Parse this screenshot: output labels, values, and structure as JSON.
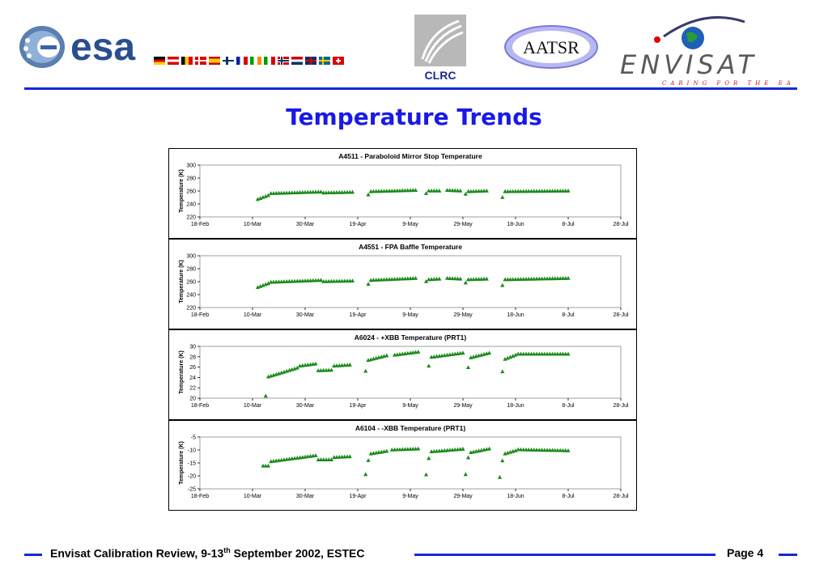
{
  "header": {
    "esa_text": "esa",
    "clrc_text": "CLRC",
    "aatsr_text": "AATSR",
    "envisat_text": "ENVISAT",
    "envisat_tagline": "CARING FOR THE EARTH"
  },
  "page_title": "Temperature Trends",
  "footer": {
    "text_pre": "Envisat Calibration Review, 9-13",
    "text_sup": "th",
    "text_post": " September 2002,  ESTEC",
    "page": "Page 4"
  },
  "colors": {
    "accent": "#1428d6",
    "title": "#1a1ae6",
    "marker": "#1a8a1a"
  },
  "chart_data": [
    {
      "type": "scatter",
      "title": "A4511 - Paraboloid Mirror Stop Temperature",
      "ylabel": "Temperature (K)",
      "xlabel": "",
      "ylim": [
        220,
        300
      ],
      "yticks": [
        220,
        240,
        260,
        280,
        300
      ],
      "xlim": [
        "2002-02-18",
        "2002-07-28"
      ],
      "xtick_labels": [
        "18-Feb",
        "10-Mar",
        "30-Mar",
        "19-Apr",
        "9-May",
        "29-May",
        "18-Jun",
        "8-Jul",
        "28-Jul"
      ],
      "segments": [
        {
          "start": "2002-03-12",
          "end": "2002-03-16",
          "from": 247,
          "to": 253
        },
        {
          "start": "2002-03-17",
          "end": "2002-04-05",
          "from": 256,
          "to": 258.5
        },
        {
          "start": "2002-04-06",
          "end": "2002-04-17",
          "from": 257,
          "to": 258
        },
        {
          "start": "2002-04-23",
          "end": "2002-04-23",
          "from": 254,
          "to": 254
        },
        {
          "start": "2002-04-24",
          "end": "2002-05-11",
          "from": 259,
          "to": 261
        },
        {
          "start": "2002-05-15",
          "end": "2002-05-15",
          "from": 256,
          "to": 256
        },
        {
          "start": "2002-05-16",
          "end": "2002-05-20",
          "from": 260,
          "to": 260
        },
        {
          "start": "2002-05-23",
          "end": "2002-05-28",
          "from": 261,
          "to": 260
        },
        {
          "start": "2002-05-30",
          "end": "2002-05-30",
          "from": 255,
          "to": 255
        },
        {
          "start": "2002-05-31",
          "end": "2002-06-07",
          "from": 259,
          "to": 260
        },
        {
          "start": "2002-06-13",
          "end": "2002-06-13",
          "from": 250,
          "to": 250
        },
        {
          "start": "2002-06-14",
          "end": "2002-07-08",
          "from": 259,
          "to": 260
        }
      ]
    },
    {
      "type": "scatter",
      "title": "A4551 - FPA Baffle Temperature",
      "ylabel": "Temperature (K)",
      "xlabel": "",
      "ylim": [
        220,
        300
      ],
      "yticks": [
        220,
        240,
        260,
        280,
        300
      ],
      "xlim": [
        "2002-02-18",
        "2002-07-28"
      ],
      "xtick_labels": [
        "18-Feb",
        "10-Mar",
        "30-Mar",
        "19-Apr",
        "9-May",
        "29-May",
        "18-Jun",
        "8-Jul",
        "28-Jul"
      ],
      "segments": [
        {
          "start": "2002-03-12",
          "end": "2002-03-16",
          "from": 251,
          "to": 257
        },
        {
          "start": "2002-03-17",
          "end": "2002-04-05",
          "from": 259,
          "to": 262
        },
        {
          "start": "2002-04-06",
          "end": "2002-04-17",
          "from": 260,
          "to": 261
        },
        {
          "start": "2002-04-23",
          "end": "2002-04-23",
          "from": 256,
          "to": 256
        },
        {
          "start": "2002-04-24",
          "end": "2002-05-11",
          "from": 262,
          "to": 265
        },
        {
          "start": "2002-05-15",
          "end": "2002-05-15",
          "from": 260,
          "to": 260
        },
        {
          "start": "2002-05-16",
          "end": "2002-05-20",
          "from": 263,
          "to": 264
        },
        {
          "start": "2002-05-23",
          "end": "2002-05-28",
          "from": 265,
          "to": 264
        },
        {
          "start": "2002-05-30",
          "end": "2002-05-30",
          "from": 258,
          "to": 258
        },
        {
          "start": "2002-05-31",
          "end": "2002-06-07",
          "from": 263,
          "to": 264
        },
        {
          "start": "2002-06-13",
          "end": "2002-06-13",
          "from": 254,
          "to": 254
        },
        {
          "start": "2002-06-14",
          "end": "2002-07-08",
          "from": 263,
          "to": 265
        }
      ]
    },
    {
      "type": "scatter",
      "title": "A6024 - +XBB Temperature (PRT1)",
      "ylabel": "Temperature (K)",
      "xlabel": "",
      "ylim": [
        20,
        30
      ],
      "yticks": [
        20,
        22,
        24,
        26,
        28,
        30
      ],
      "xlim": [
        "2002-02-18",
        "2002-07-28"
      ],
      "xtick_labels": [
        "18-Feb",
        "10-Mar",
        "30-Mar",
        "19-Apr",
        "9-May",
        "29-May",
        "18-Jun",
        "8-Jul",
        "28-Jul"
      ],
      "segments": [
        {
          "start": "2002-03-15",
          "end": "2002-03-15",
          "from": 20.4,
          "to": 20.4
        },
        {
          "start": "2002-03-16",
          "end": "2002-03-27",
          "from": 24.1,
          "to": 25.8
        },
        {
          "start": "2002-03-28",
          "end": "2002-04-03",
          "from": 26.2,
          "to": 26.6
        },
        {
          "start": "2002-04-04",
          "end": "2002-04-09",
          "from": 25.3,
          "to": 25.4
        },
        {
          "start": "2002-04-10",
          "end": "2002-04-16",
          "from": 26.2,
          "to": 26.4
        },
        {
          "start": "2002-04-22",
          "end": "2002-04-22",
          "from": 25.2,
          "to": 25.2
        },
        {
          "start": "2002-04-23",
          "end": "2002-04-30",
          "from": 27.3,
          "to": 28.2
        },
        {
          "start": "2002-05-03",
          "end": "2002-05-12",
          "from": 28.3,
          "to": 28.9
        },
        {
          "start": "2002-05-16",
          "end": "2002-05-16",
          "from": 26.2,
          "to": 26.2
        },
        {
          "start": "2002-05-17",
          "end": "2002-05-29",
          "from": 27.9,
          "to": 28.7
        },
        {
          "start": "2002-05-31",
          "end": "2002-05-31",
          "from": 25.9,
          "to": 25.9
        },
        {
          "start": "2002-06-01",
          "end": "2002-06-08",
          "from": 27.8,
          "to": 28.7
        },
        {
          "start": "2002-06-13",
          "end": "2002-06-13",
          "from": 25.1,
          "to": 25.1
        },
        {
          "start": "2002-06-14",
          "end": "2002-06-18",
          "from": 27.5,
          "to": 28.3
        },
        {
          "start": "2002-06-19",
          "end": "2002-07-08",
          "from": 28.5,
          "to": 28.5
        }
      ]
    },
    {
      "type": "scatter",
      "title": "A6104 - -XBB Temperature (PRT1)",
      "ylabel": "Temperature (K)",
      "xlabel": "",
      "ylim": [
        -25,
        -5
      ],
      "yticks": [
        -25,
        -20,
        -15,
        -10,
        -5
      ],
      "xlim": [
        "2002-02-18",
        "2002-07-28"
      ],
      "xtick_labels": [
        "18-Feb",
        "10-Mar",
        "30-Mar",
        "19-Apr",
        "9-May",
        "29-May",
        "18-Jun",
        "8-Jul",
        "28-Jul"
      ],
      "segments": [
        {
          "start": "2002-03-14",
          "end": "2002-03-16",
          "from": -16.2,
          "to": -16.2
        },
        {
          "start": "2002-03-17",
          "end": "2002-04-03",
          "from": -14.5,
          "to": -12.2
        },
        {
          "start": "2002-04-04",
          "end": "2002-04-09",
          "from": -13.8,
          "to": -13.8
        },
        {
          "start": "2002-04-10",
          "end": "2002-04-16",
          "from": -12.9,
          "to": -12.6
        },
        {
          "start": "2002-04-22",
          "end": "2002-04-22",
          "from": -19.5,
          "to": -19.5
        },
        {
          "start": "2002-04-23",
          "end": "2002-04-23",
          "from": -14.1,
          "to": -14.1
        },
        {
          "start": "2002-04-24",
          "end": "2002-04-30",
          "from": -11.5,
          "to": -10.5
        },
        {
          "start": "2002-05-02",
          "end": "2002-05-12",
          "from": -10.0,
          "to": -9.6
        },
        {
          "start": "2002-05-15",
          "end": "2002-05-15",
          "from": -19.6,
          "to": -19.6
        },
        {
          "start": "2002-05-16",
          "end": "2002-05-16",
          "from": -13.3,
          "to": -13.3
        },
        {
          "start": "2002-05-17",
          "end": "2002-05-29",
          "from": -10.7,
          "to": -9.7
        },
        {
          "start": "2002-05-30",
          "end": "2002-05-30",
          "from": -19.5,
          "to": -19.5
        },
        {
          "start": "2002-05-31",
          "end": "2002-05-31",
          "from": -13.0,
          "to": -13.0
        },
        {
          "start": "2002-06-01",
          "end": "2002-06-08",
          "from": -11.0,
          "to": -9.6
        },
        {
          "start": "2002-06-12",
          "end": "2002-06-12",
          "from": -20.6,
          "to": -20.6
        },
        {
          "start": "2002-06-13",
          "end": "2002-06-13",
          "from": -14.2,
          "to": -14.2
        },
        {
          "start": "2002-06-14",
          "end": "2002-06-18",
          "from": -11.5,
          "to": -10.3
        },
        {
          "start": "2002-06-19",
          "end": "2002-07-08",
          "from": -9.9,
          "to": -10.3
        }
      ]
    }
  ]
}
